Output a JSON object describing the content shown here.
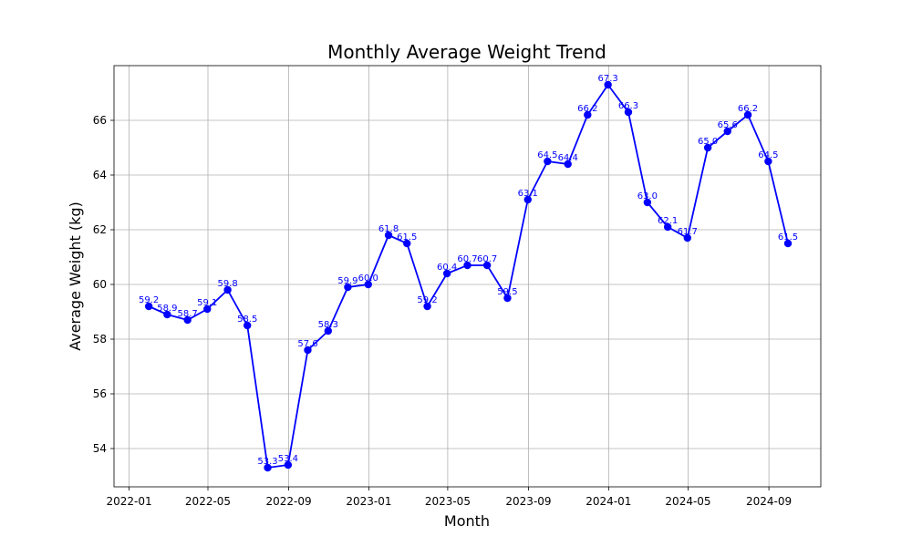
{
  "chart_data": {
    "type": "line",
    "title": "Monthly Average Weight Trend",
    "xlabel": "Month",
    "ylabel": "Average Weight (kg)",
    "x_ticks": [
      "2022-01",
      "2022-05",
      "2022-09",
      "2023-01",
      "2023-05",
      "2023-09",
      "2024-01",
      "2024-05",
      "2024-09"
    ],
    "y_ticks": [
      54,
      56,
      58,
      60,
      62,
      64,
      66
    ],
    "xlim": [
      "2021-12-09",
      "2024-11-19"
    ],
    "ylim": [
      52.6,
      68.0
    ],
    "grid": true,
    "color": "#0000ff",
    "marker": "circle",
    "series": [
      {
        "x": [
          "2022-01-31",
          "2022-02-28",
          "2022-03-31",
          "2022-04-30",
          "2022-05-31",
          "2022-06-30",
          "2022-07-31",
          "2022-08-31",
          "2022-09-30",
          "2022-10-31",
          "2022-11-30",
          "2022-12-31",
          "2023-01-31",
          "2023-02-28",
          "2023-03-31",
          "2023-04-30",
          "2023-05-31",
          "2023-06-30",
          "2023-07-31",
          "2023-08-31",
          "2023-09-30",
          "2023-10-31",
          "2023-11-30",
          "2023-12-31",
          "2024-01-31",
          "2024-02-29",
          "2024-03-31",
          "2024-04-30",
          "2024-05-31",
          "2024-06-30",
          "2024-07-31",
          "2024-08-31",
          "2024-09-30"
        ],
        "values": [
          59.2,
          58.9,
          58.7,
          59.1,
          59.8,
          58.5,
          53.3,
          53.4,
          57.6,
          58.3,
          59.9,
          60.0,
          61.8,
          61.5,
          59.2,
          60.4,
          60.7,
          60.7,
          59.5,
          63.1,
          64.5,
          64.4,
          66.2,
          67.3,
          66.3,
          63.0,
          62.1,
          61.7,
          65.0,
          65.6,
          66.2,
          64.5,
          61.5
        ],
        "labels": [
          "59.2",
          "58.9",
          "58.7",
          "59.1",
          "59.8",
          "58.5",
          "53.3",
          "53.4",
          "57.6",
          "58.3",
          "59.9",
          "60.0",
          "61.8",
          "61.5",
          "59.2",
          "60.4",
          "60.7",
          "60.7",
          "59.5",
          "63.1",
          "64.5",
          "64.4",
          "66.2",
          "67.3",
          "66.3",
          "63.0",
          "62.1",
          "61.7",
          "65.0",
          "65.6",
          "66.2",
          "64.5",
          "61.5"
        ]
      }
    ]
  }
}
